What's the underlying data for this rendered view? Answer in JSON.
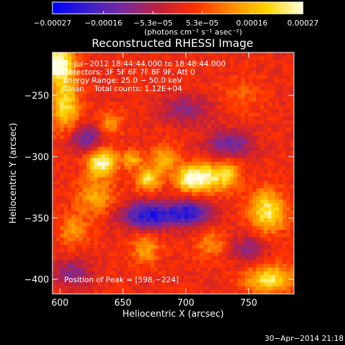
{
  "chart_data": {
    "type": "heatmap",
    "title": "Reconstructed RHESSI Image",
    "xlabel": "Heliocentric X (arcsec)",
    "ylabel": "Heliocentric Y (arcsec)",
    "xlim": [
      594,
      786
    ],
    "ylim": [
      -412,
      -215
    ],
    "x_ticks": [
      {
        "value": 600,
        "label": "600"
      },
      {
        "value": 650,
        "label": "650"
      },
      {
        "value": 700,
        "label": "700"
      },
      {
        "value": 750,
        "label": "750"
      }
    ],
    "y_ticks": [
      {
        "value": -250,
        "label": "−250"
      },
      {
        "value": -300,
        "label": "−300"
      },
      {
        "value": -350,
        "label": "−350"
      },
      {
        "value": -400,
        "label": "−400"
      }
    ],
    "colorbar": {
      "range": [
        -0.00027,
        0.00027
      ],
      "ticks": [
        {
          "value": -0.00027,
          "label": "−0.00027"
        },
        {
          "value": -0.00016,
          "label": "−0.00016"
        },
        {
          "value": -5.3e-05,
          "label": "−5.3e−05"
        },
        {
          "value": 5.3e-05,
          "label": "5.3e−05"
        },
        {
          "value": 0.00016,
          "label": "0.00016"
        },
        {
          "value": 0.00027,
          "label": "0.00027"
        }
      ],
      "units_label": "(photons cm⁻² s⁻¹ asec⁻²)",
      "colors": [
        "#0000ff",
        "#3b1fc8",
        "#7a2a9a",
        "#c0203a",
        "#ff3000",
        "#ff8a00",
        "#ffd400",
        "#ffffe0"
      ]
    },
    "annotations": [
      "6−Jul−2012 18:44:44.000 to 18:48:44.000",
      "Detectors: 3F 5F 6F 7F 8F 9F, Att 0",
      "Energy Range: 25.0 − 50.0 keV",
      "Clean    Total counts: 1.12E+04"
    ],
    "peak_label": "Position of Peak = [598,−224]",
    "peak": {
      "x": 598,
      "y": -224
    },
    "sources": [
      {
        "x": 598,
        "y": -224,
        "sx": 9,
        "sy": 11,
        "v": 1.0
      },
      {
        "x": 604,
        "y": -258,
        "sx": 8,
        "sy": 16,
        "v": 0.7
      },
      {
        "x": 633,
        "y": -305,
        "sx": 8,
        "sy": 8,
        "v": 0.95
      },
      {
        "x": 628,
        "y": -333,
        "sx": 11,
        "sy": 10,
        "v": 0.45
      },
      {
        "x": 670,
        "y": -318,
        "sx": 7,
        "sy": 7,
        "v": 0.75
      },
      {
        "x": 657,
        "y": -302,
        "sx": 6,
        "sy": 5,
        "v": 0.5
      },
      {
        "x": 684,
        "y": -302,
        "sx": 7,
        "sy": 8,
        "v": 0.55
      },
      {
        "x": 714,
        "y": -317,
        "sx": 9,
        "sy": 8,
        "v": 0.95
      },
      {
        "x": 700,
        "y": -318,
        "sx": 6,
        "sy": 7,
        "v": 0.65
      },
      {
        "x": 733,
        "y": -315,
        "sx": 7,
        "sy": 9,
        "v": 0.6
      },
      {
        "x": 765,
        "y": -345,
        "sx": 10,
        "sy": 12,
        "v": 0.8
      },
      {
        "x": 767,
        "y": -400,
        "sx": 14,
        "sy": 8,
        "v": 0.75
      },
      {
        "x": 668,
        "y": -375,
        "sx": 8,
        "sy": 9,
        "v": 0.45
      },
      {
        "x": 611,
        "y": -360,
        "sx": 9,
        "sy": 9,
        "v": 0.4
      },
      {
        "x": 640,
        "y": -272,
        "sx": 7,
        "sy": 7,
        "v": 0.4
      },
      {
        "x": 720,
        "y": -372,
        "sx": 9,
        "sy": 8,
        "v": 0.35
      },
      {
        "x": 745,
        "y": -250,
        "sx": 12,
        "sy": 10,
        "v": 0.2
      }
    ],
    "negative_regions": [
      {
        "x": 670,
        "y": -348,
        "sx": 15,
        "sy": 8,
        "v": 0.9
      },
      {
        "x": 703,
        "y": -346,
        "sx": 12,
        "sy": 7,
        "v": 0.8
      },
      {
        "x": 620,
        "y": -285,
        "sx": 10,
        "sy": 8,
        "v": 0.55
      },
      {
        "x": 735,
        "y": -290,
        "sx": 13,
        "sy": 8,
        "v": 0.55
      },
      {
        "x": 700,
        "y": -262,
        "sx": 14,
        "sy": 8,
        "v": 0.4
      },
      {
        "x": 750,
        "y": -375,
        "sx": 10,
        "sy": 8,
        "v": 0.4
      },
      {
        "x": 610,
        "y": -395,
        "sx": 10,
        "sy": 8,
        "v": 0.45
      }
    ],
    "background_level": 0.06
  },
  "footer": {
    "timestamp": "30−Apr−2014 21:18"
  }
}
